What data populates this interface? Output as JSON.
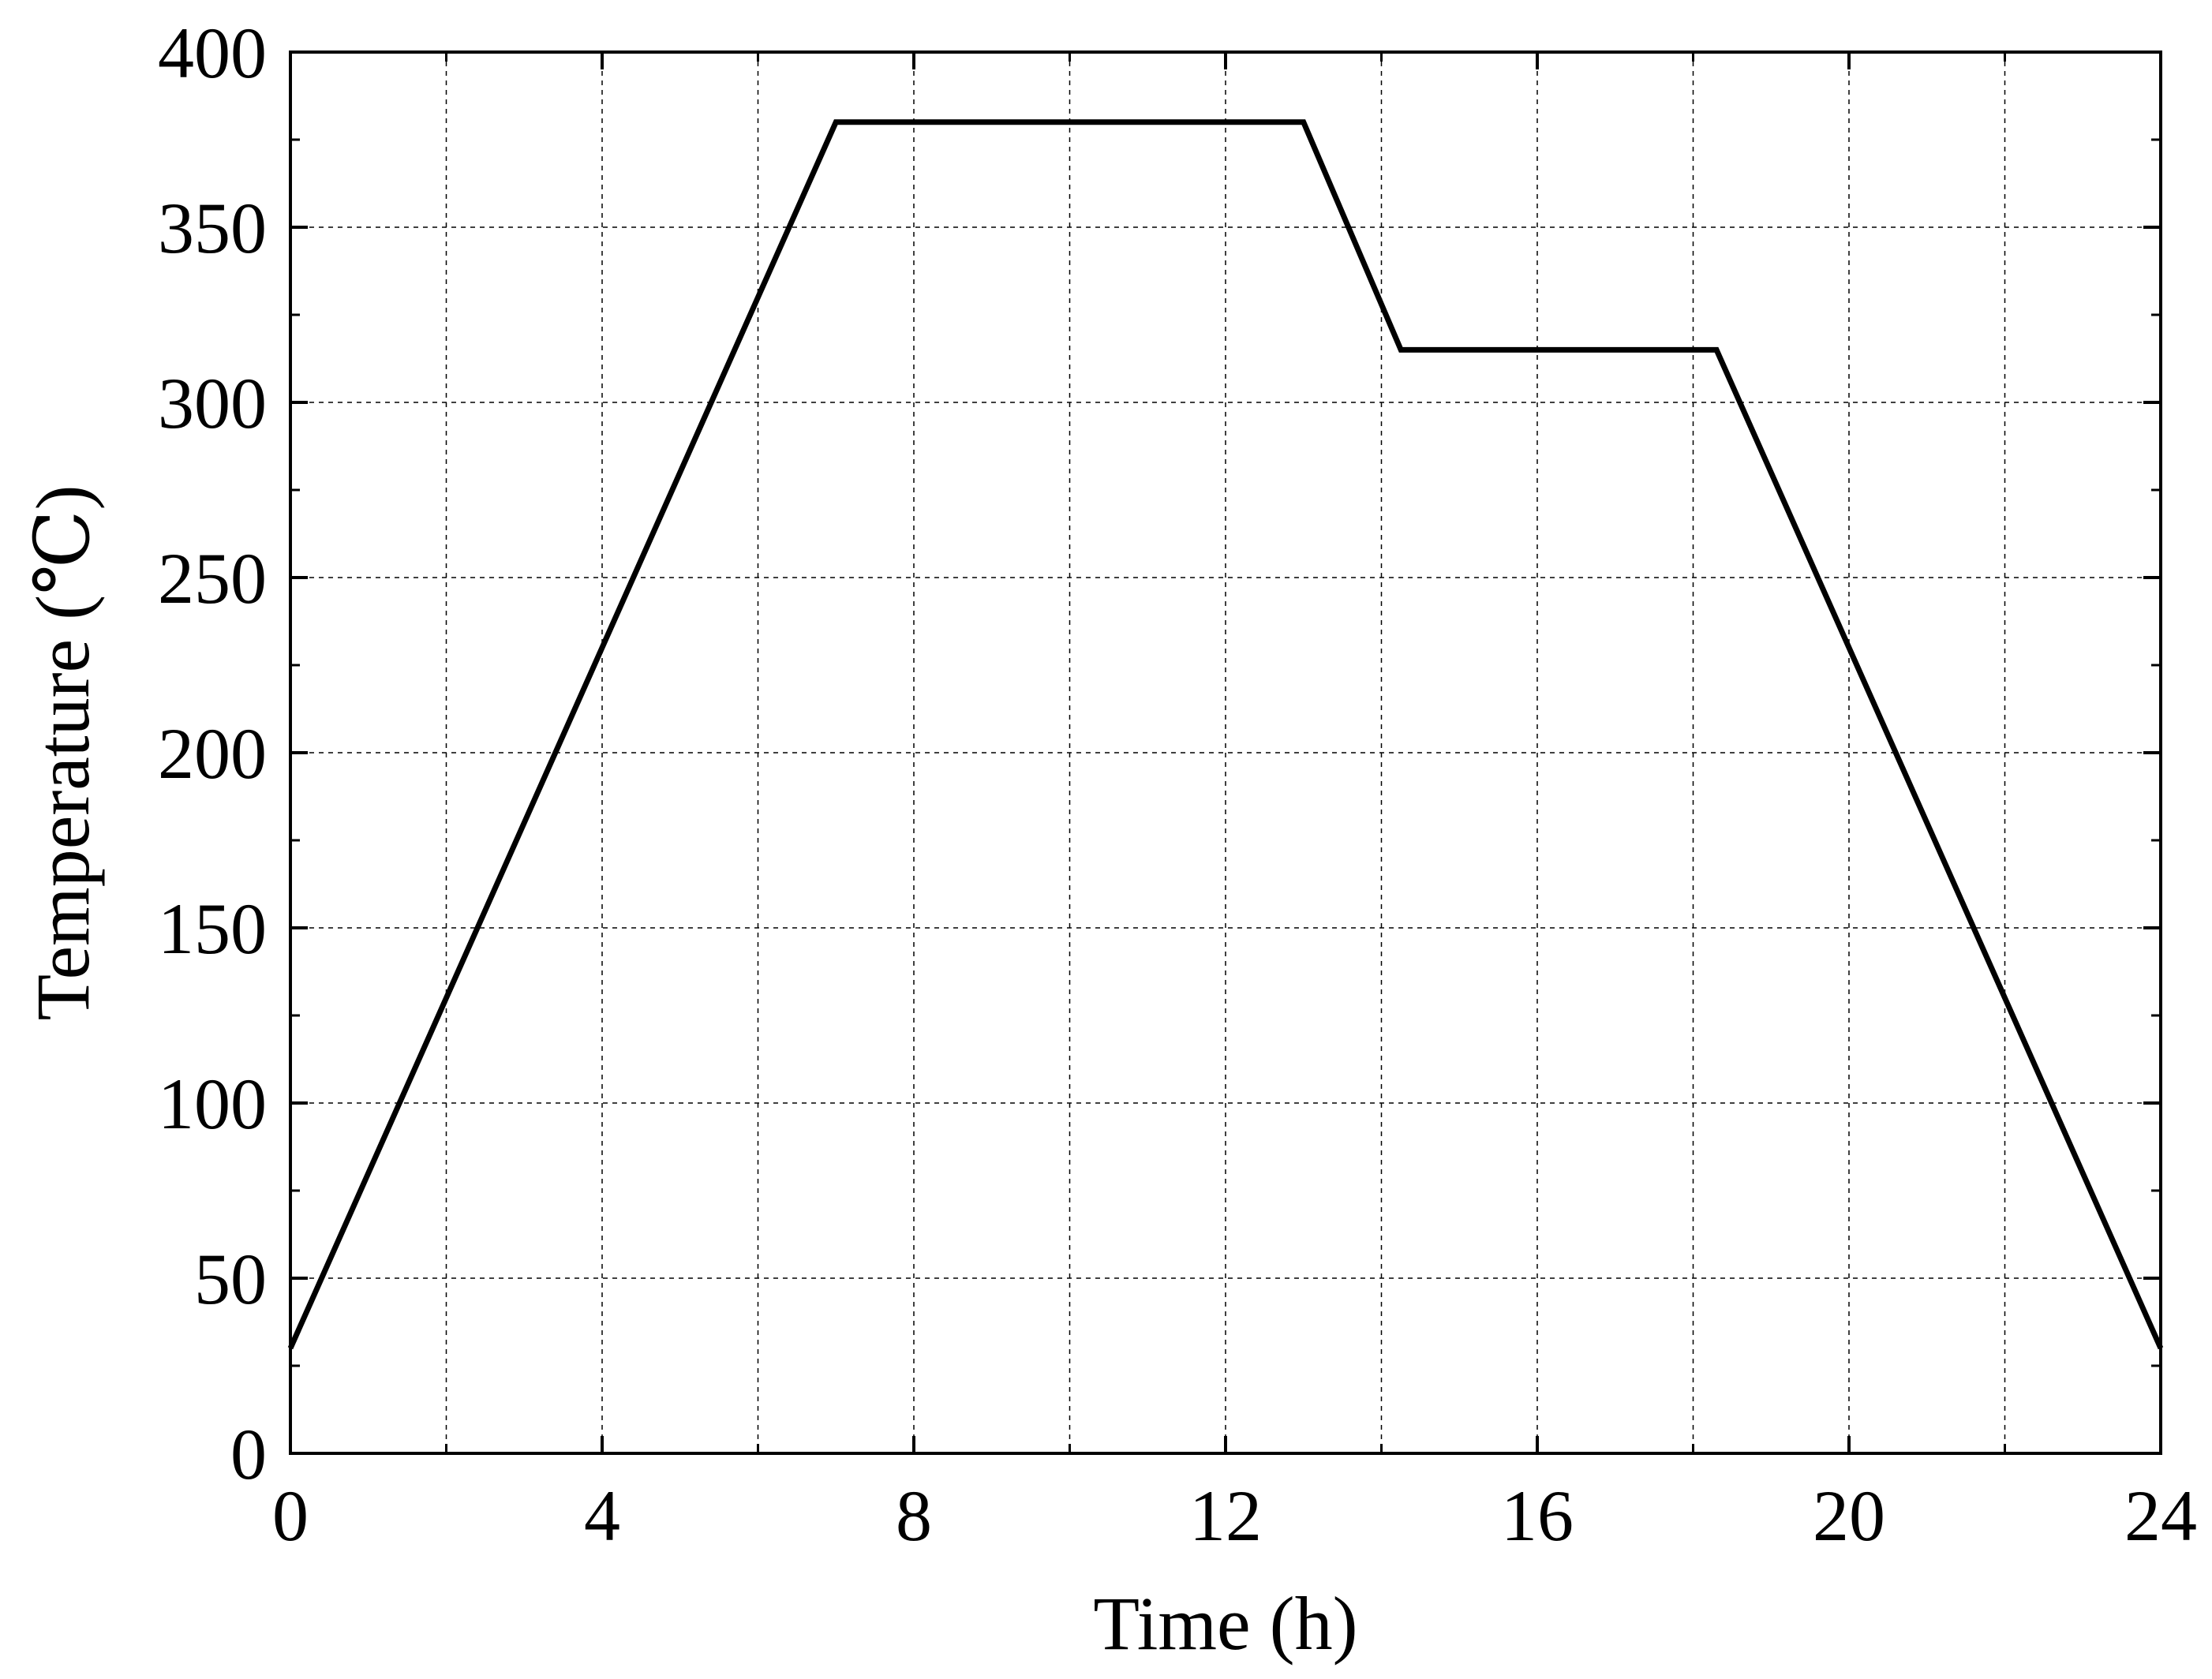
{
  "chart_data": {
    "type": "line",
    "title": "",
    "xlabel": "Time (h)",
    "ylabel": "Temperature (℃)",
    "xlim": [
      0,
      24
    ],
    "ylim": [
      0,
      400
    ],
    "xticks": [
      0,
      4,
      8,
      12,
      16,
      20,
      24
    ],
    "yticks": [
      0,
      50,
      100,
      150,
      200,
      250,
      300,
      350,
      400
    ],
    "x_tick_labels": [
      "0",
      "4",
      "8",
      "12",
      "16",
      "20",
      "24"
    ],
    "y_tick_labels": [
      "0",
      "50",
      "100",
      "150",
      "200",
      "250",
      "300",
      "350",
      "400"
    ],
    "grid": true,
    "legend": "none",
    "series": [
      {
        "color": "#000000",
        "x": [
          0,
          7,
          13,
          14.25,
          18.3,
          24
        ],
        "y": [
          30,
          380,
          380,
          315,
          315,
          30
        ]
      }
    ]
  }
}
